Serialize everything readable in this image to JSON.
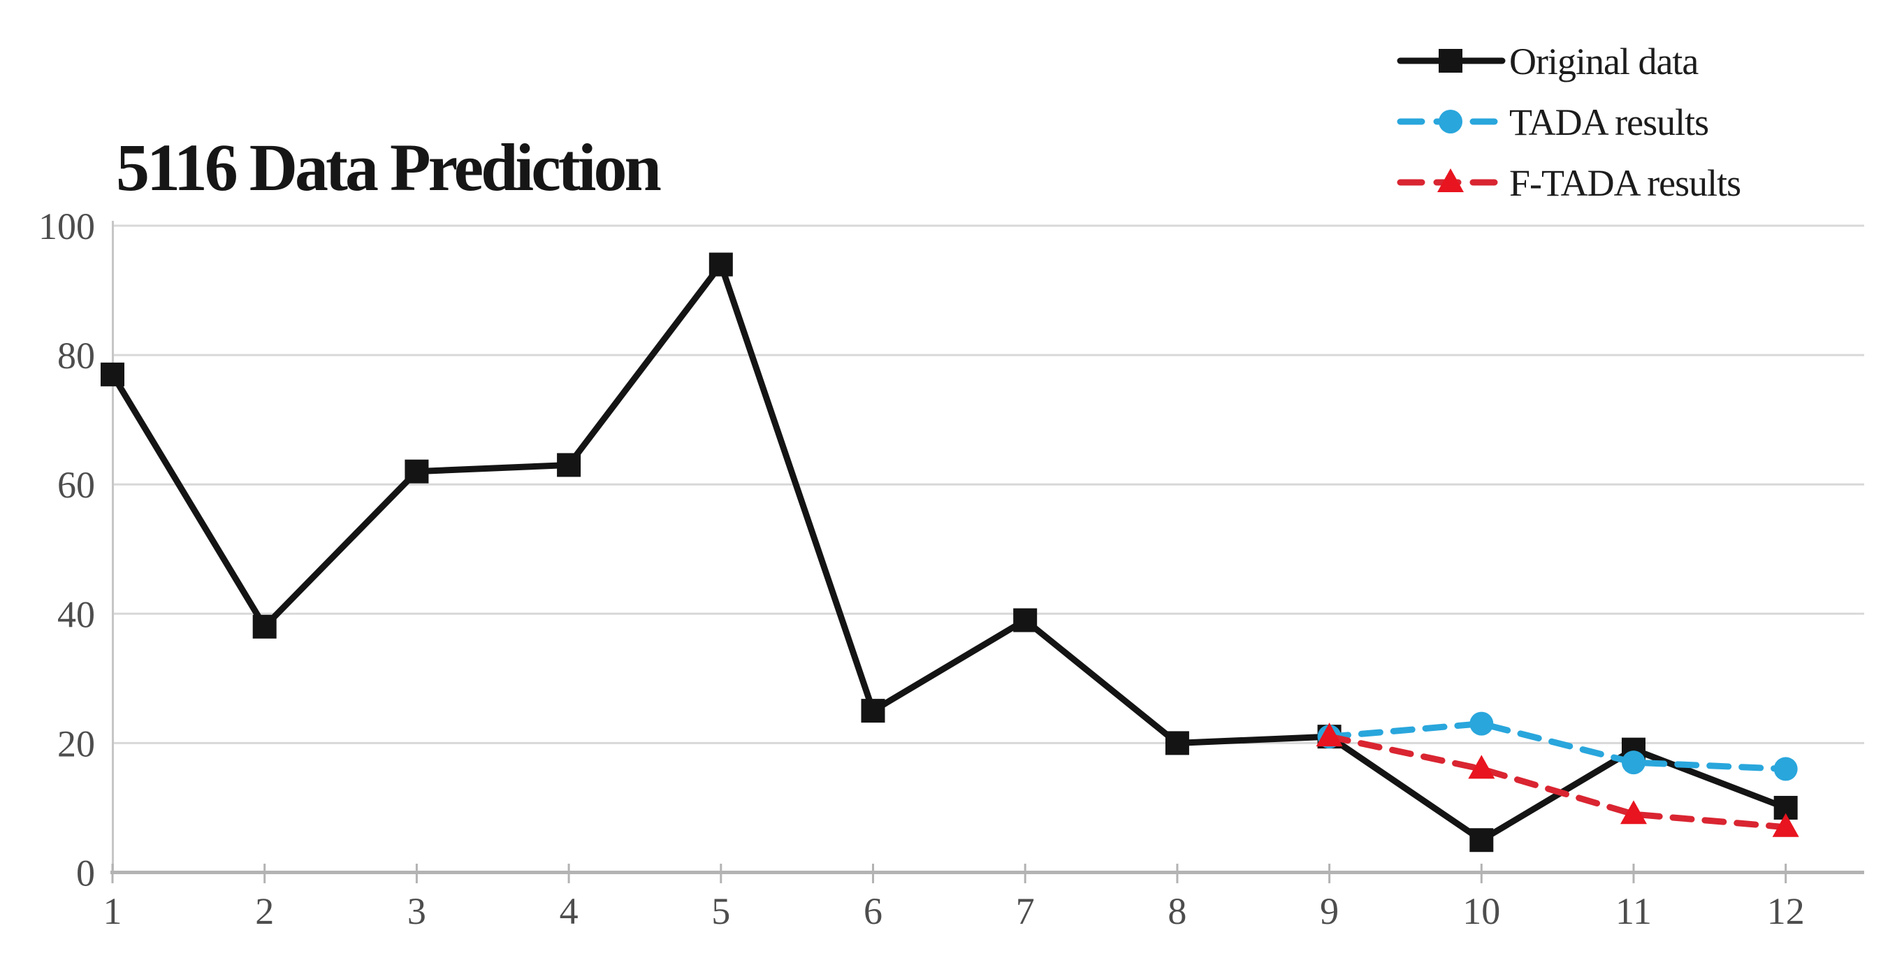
{
  "chart_data": {
    "type": "line",
    "title": "5116 Data Prediction",
    "xlabel": "",
    "ylabel": "",
    "x": [
      1,
      2,
      3,
      4,
      5,
      6,
      7,
      8,
      9,
      10,
      11,
      12
    ],
    "xlim": [
      1,
      12
    ],
    "ylim": [
      0,
      100
    ],
    "yticks": [
      0,
      20,
      40,
      60,
      80,
      100
    ],
    "xticks": [
      1,
      2,
      3,
      4,
      5,
      6,
      7,
      8,
      9,
      10,
      11,
      12
    ],
    "grid": true,
    "legend_position": "top-right",
    "series": [
      {
        "name": "Original data",
        "color": "#141414",
        "marker": "square",
        "line_style": "solid",
        "x": [
          1,
          2,
          3,
          4,
          5,
          6,
          7,
          8,
          9,
          10,
          11,
          12
        ],
        "values": [
          77,
          38,
          62,
          63,
          94,
          25,
          39,
          20,
          21,
          5,
          19,
          10
        ]
      },
      {
        "name": "TADA results",
        "color": "#29a6dc",
        "marker": "circle",
        "line_style": "dashed",
        "x": [
          9,
          10,
          11,
          12
        ],
        "values": [
          21,
          23,
          17,
          16
        ]
      },
      {
        "name": "F-TADA results",
        "color": "#d92531",
        "marker_color": "#e8141f",
        "marker": "triangle",
        "line_style": "dashed",
        "x": [
          9,
          10,
          11,
          12
        ],
        "values": [
          21,
          16,
          9,
          7
        ]
      }
    ],
    "colors": {
      "background": "#ffffff",
      "gridline": "#d8d8d8",
      "axis_line": "#b3b3b3",
      "y_axis_line": "#c6c6c6",
      "tick_label": "#4d4d4d",
      "title_text": "#161616",
      "legend_text": "#1c1c1c"
    }
  }
}
